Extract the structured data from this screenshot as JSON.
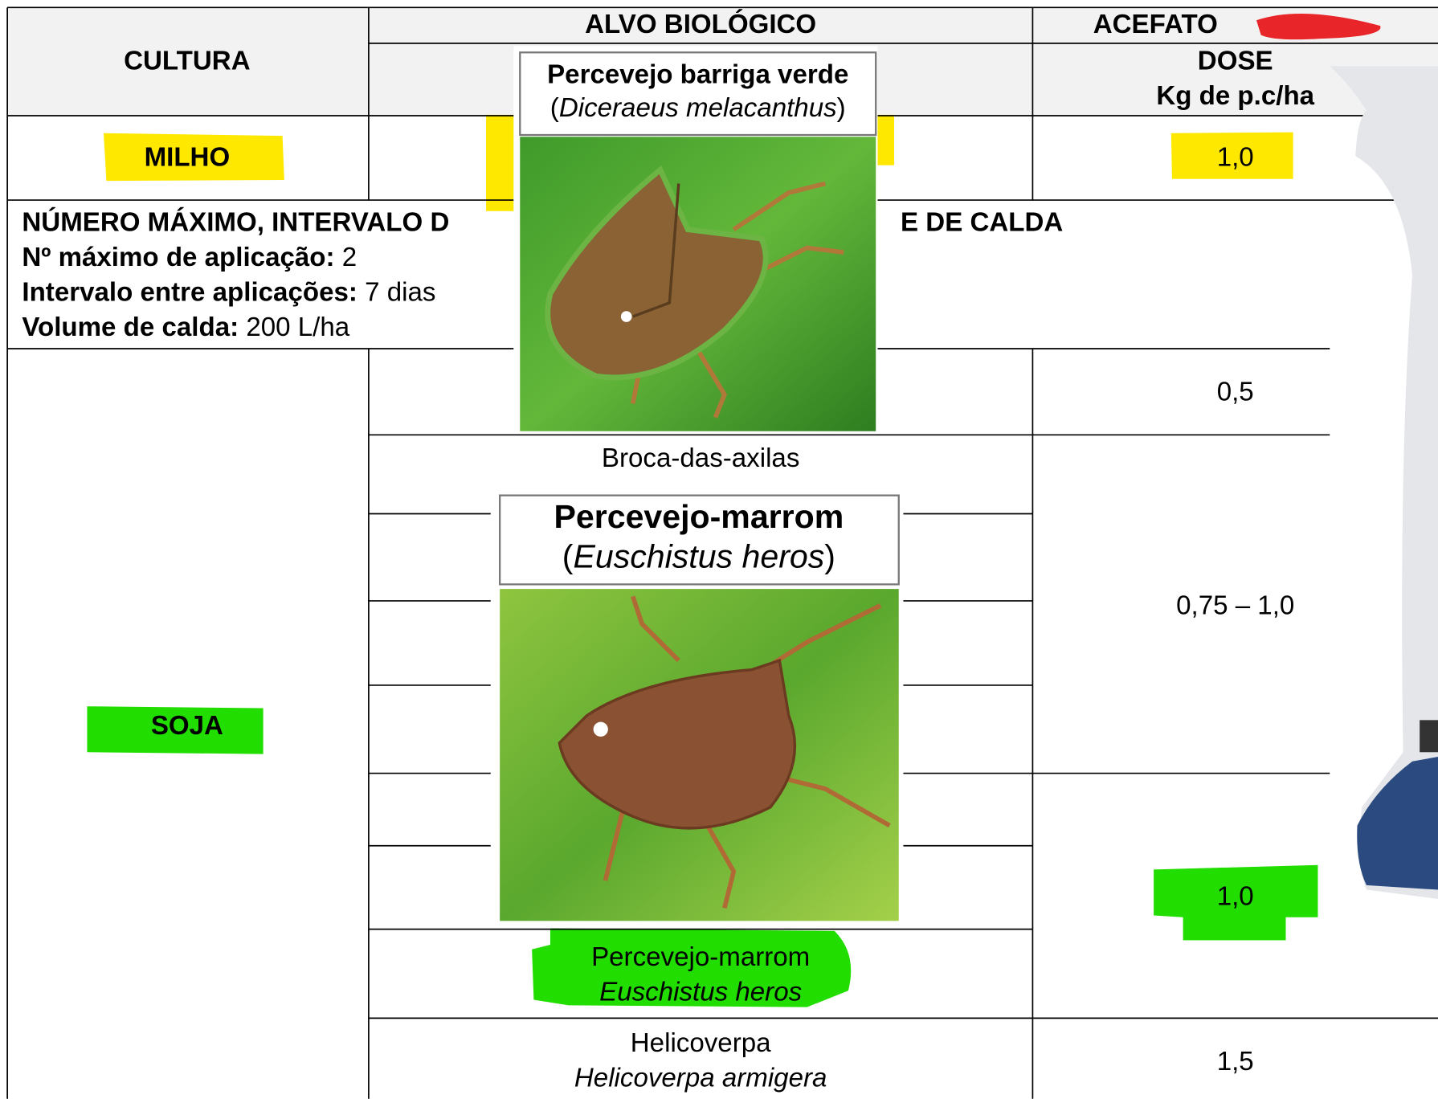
{
  "header": {
    "cultura": "CULTURA",
    "alvo": "ALVO BIOLÓGICO",
    "produto": "ACEFATO",
    "dose": "DOSE",
    "dose_unit": "Kg de p.c/ha"
  },
  "milho": {
    "cultura": "MILHO",
    "dose": "1,0"
  },
  "info": {
    "title_left": "NÚMERO MÁXIMO, INTERVALO D",
    "title_right": "E DE CALDA",
    "lines": [
      {
        "label": "Nº máximo de aplicação:",
        "value": "2"
      },
      {
        "label": "Intervalo entre aplicações:",
        "value": "7 dias"
      },
      {
        "label": "Volume de calda:",
        "value": "200 L/ha"
      }
    ]
  },
  "soja": {
    "cultura": "SOJA",
    "doses": [
      "0,5",
      "0,75 – 1,0",
      "1,0",
      "1,5"
    ],
    "targets": [
      {
        "name": "Broca-das-axilas"
      },
      {
        "name": "Percevejo-marrom",
        "scientific": "Euschistus heros"
      },
      {
        "name": "Helicoverpa",
        "scientific": "Helicoverpa armigera"
      }
    ]
  },
  "cards": [
    {
      "name": "Percevejo barriga verde",
      "open": "(",
      "scientific": "Diceraeus melacanthus",
      "close": ")"
    },
    {
      "name": "Percevejo-marrom",
      "open": "(",
      "scientific": "Euschistus heros",
      "close": ")"
    }
  ]
}
